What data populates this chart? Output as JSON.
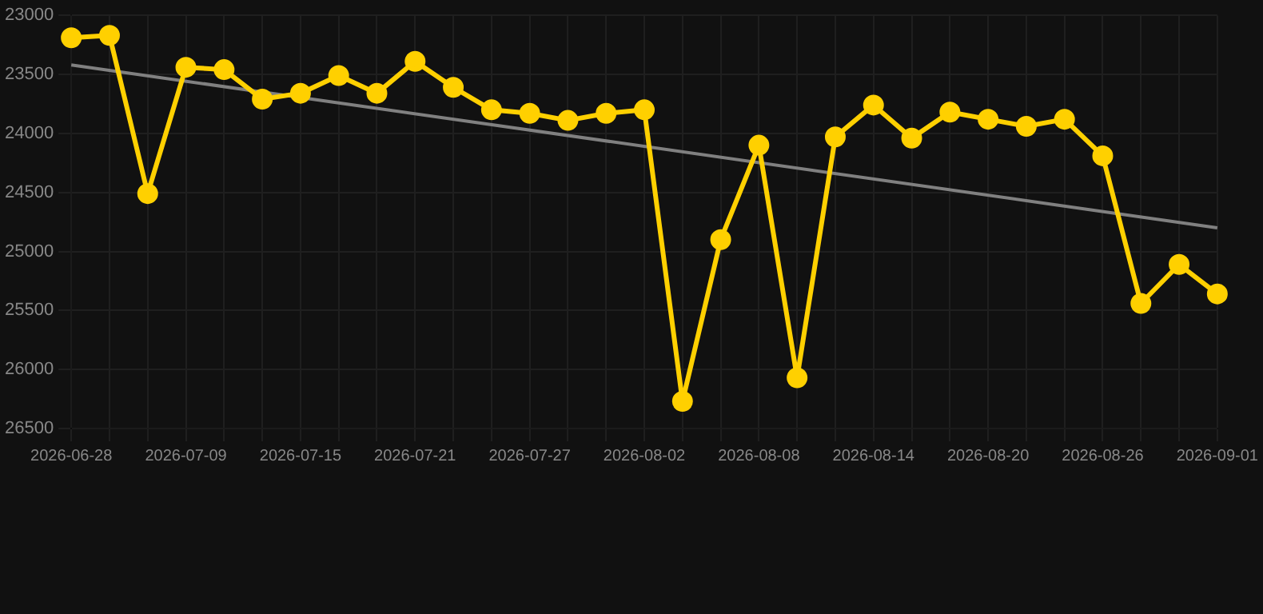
{
  "chart_data": {
    "type": "line",
    "categories": [
      "2026-06-28",
      null,
      null,
      "2026-07-09",
      null,
      null,
      "2026-07-15",
      null,
      null,
      "2026-07-21",
      null,
      null,
      "2026-07-27",
      null,
      null,
      "2026-08-02",
      null,
      null,
      "2026-08-08",
      null,
      null,
      "2026-08-14",
      null,
      null,
      "2026-08-20",
      null,
      null,
      "2026-08-26",
      null,
      null,
      "2026-09-01"
    ],
    "series": [
      {
        "color": "#ffd000",
        "marker": "circle",
        "values": [
          23190,
          23170,
          24510,
          23440,
          23460,
          23710,
          23660,
          23510,
          23660,
          23390,
          23610,
          23800,
          23830,
          23890,
          23830,
          23800,
          26270,
          24900,
          24100,
          26070,
          24030,
          23760,
          24040,
          23820,
          23880,
          23940,
          23880,
          24190,
          25440,
          25110,
          25360
        ]
      },
      {
        "type": "line",
        "color": "#808080",
        "marker": "none",
        "values": [
          23420,
          null,
          null,
          null,
          null,
          null,
          null,
          null,
          null,
          null,
          null,
          null,
          null,
          null,
          null,
          null,
          null,
          null,
          null,
          null,
          null,
          null,
          null,
          null,
          null,
          null,
          null,
          null,
          null,
          null,
          24800
        ]
      }
    ],
    "ylim": [
      26500,
      23000
    ],
    "yticks": [
      23000,
      23500,
      24000,
      24500,
      25000,
      25500,
      26000,
      26500
    ],
    "grid": true,
    "legend": false,
    "line_style": "solid"
  }
}
